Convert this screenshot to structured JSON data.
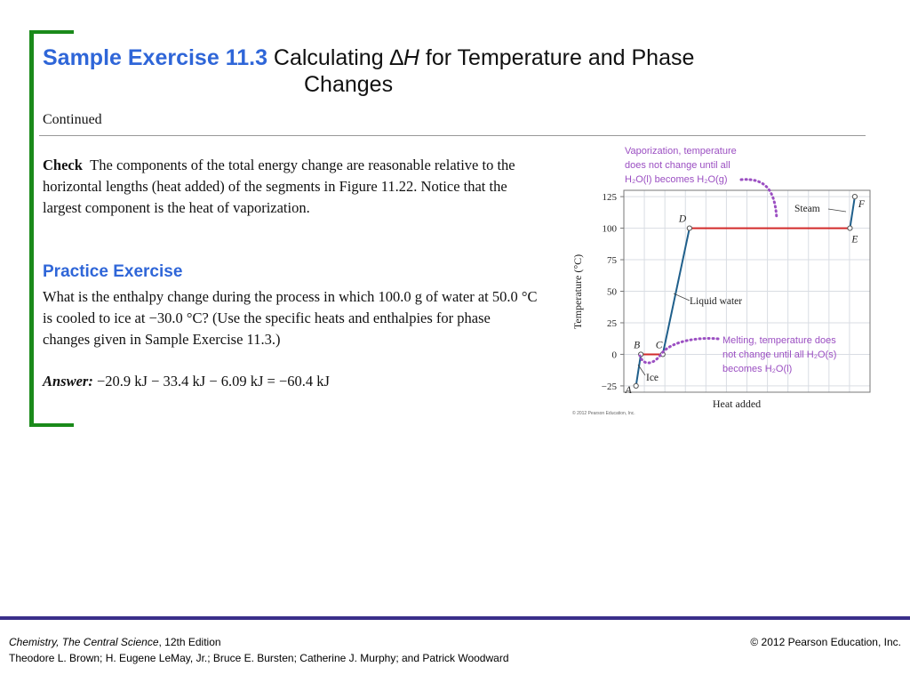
{
  "title": {
    "exercise": "Sample Exercise 11.3",
    "pre": "Calculating ",
    "delta": "∆",
    "h": "H",
    "post": " for Temperature and Phase",
    "line2": "Changes"
  },
  "continued": "Continued",
  "check": {
    "label": "Check",
    "text": "The components of the total energy change are reasonable relative to the horizontal lengths (heat added) of the segments in Figure 11.22. Notice that the largest component is the heat of vaporization."
  },
  "practice": {
    "heading": "Practice Exercise",
    "text": "What is the enthalpy change during the process in which 100.0 g of water at 50.0 °C is cooled to ice at −30.0 °C? (Use the specific heats and enthalpies for phase changes given in Sample Exercise 11.3.)"
  },
  "answer": {
    "label": "Answer:",
    "text": " −20.9 kJ − 33.4 kJ − 6.09 kJ = −60.4 kJ"
  },
  "chart_data": {
    "type": "line",
    "xlabel": "Heat added",
    "ylabel": "Temperature (°C)",
    "ylim": [
      -25,
      125
    ],
    "yticks": [
      "125",
      "100",
      "75",
      "50",
      "25",
      "0",
      "−25"
    ],
    "ytick_values": [
      125,
      100,
      75,
      50,
      25,
      0,
      -25
    ],
    "grid": true,
    "points": [
      {
        "label": "A",
        "x": 0.0,
        "y": -25
      },
      {
        "label": "B",
        "x": 0.08,
        "y": 0
      },
      {
        "label": "C",
        "x": 0.44,
        "y": 0
      },
      {
        "label": "D",
        "x": 0.88,
        "y": 100
      },
      {
        "label": "E",
        "x": 3.52,
        "y": 100
      },
      {
        "label": "F",
        "x": 3.6,
        "y": 125
      }
    ],
    "segment_labels": {
      "steam": "Steam",
      "liquid": "Liquid water",
      "ice": "Ice"
    },
    "annotations": {
      "vaporization": [
        "Vaporization, temperature",
        "does not change until all",
        "H₂O(l) becomes H₂O(g)"
      ],
      "melting": [
        "Melting, temperature does",
        "not change until all H₂O(s)",
        "becomes H₂O(l)"
      ]
    },
    "copyright": "© 2012 Pearson Education, Inc.",
    "colors": {
      "line": "#1f5f8b",
      "phase_line": "#d22a2a",
      "annotation": "#9b4fc2",
      "grid": "#d9dde3"
    }
  },
  "footer": {
    "book": "Chemistry, The Central Science",
    "edition": ", 12th Edition",
    "authors": "Theodore L. Brown; H. Eugene LeMay, Jr.; Bruce E. Bursten; Catherine J. Murphy; and Patrick Woodward",
    "copyright": "© 2012 Pearson Education, Inc."
  }
}
